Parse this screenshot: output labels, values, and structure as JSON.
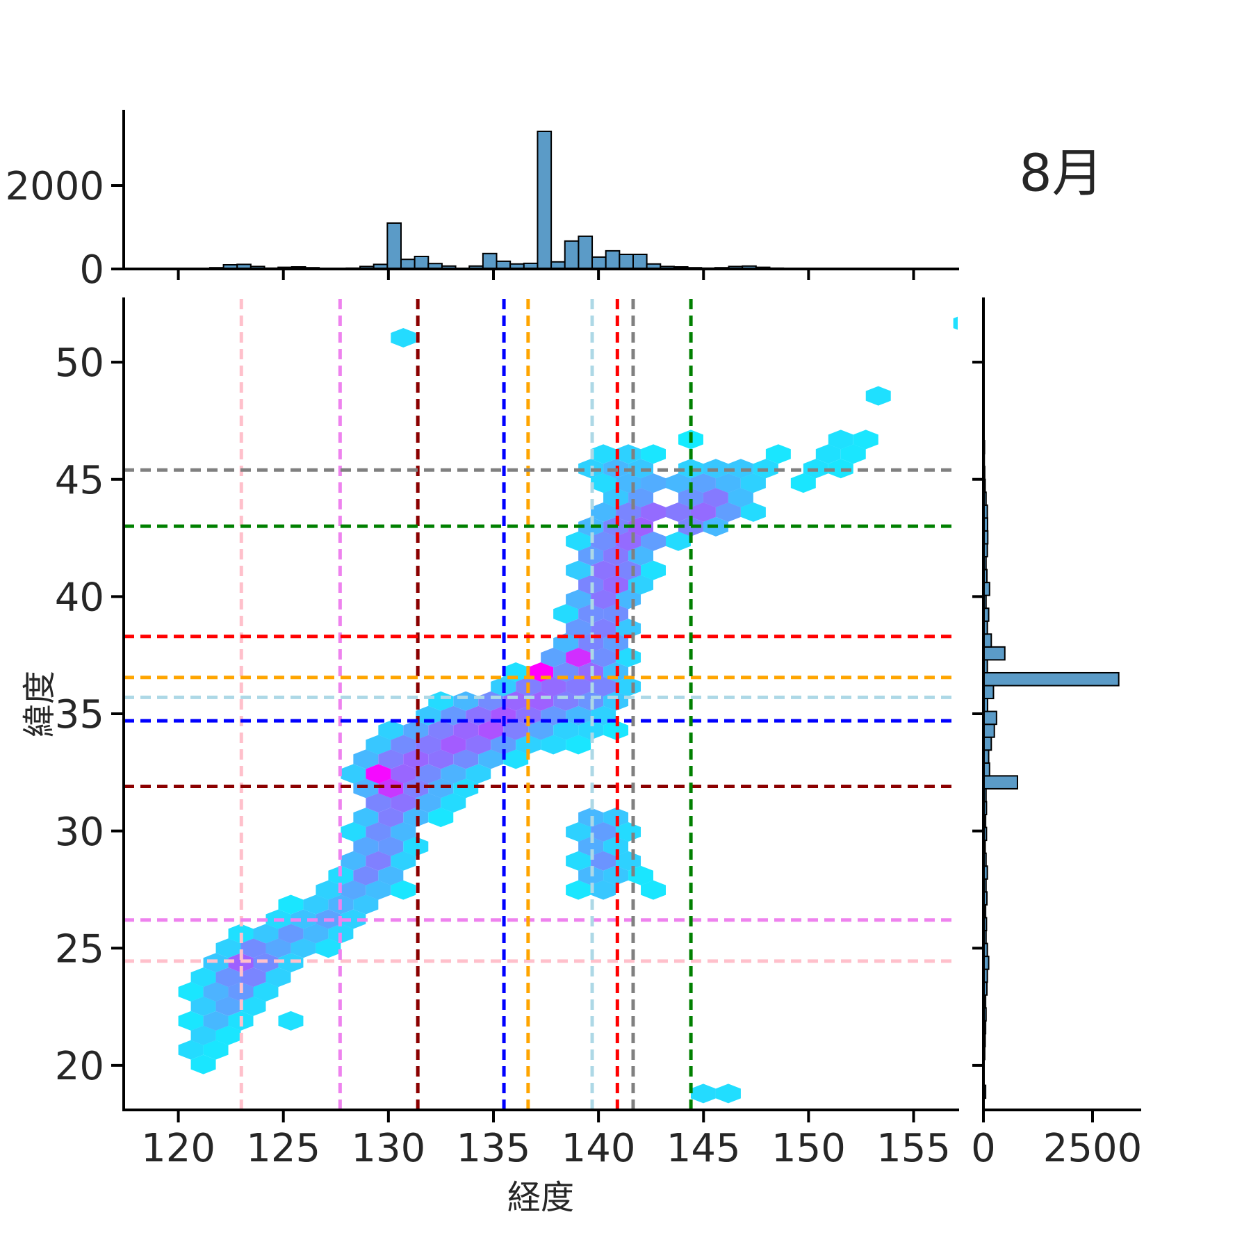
{
  "title": "8月",
  "axes": {
    "xlabel": "経度",
    "ylabel": "緯度"
  },
  "chart_data": {
    "type": "hexbin",
    "title": "8月",
    "main": {
      "xlabel": "経度",
      "ylabel": "緯度",
      "xlim": [
        117.4,
        157.1
      ],
      "ylim": [
        18.1,
        52.7
      ],
      "xticks": [
        120,
        125,
        130,
        135,
        140,
        145,
        150,
        155
      ],
      "yticks": [
        20,
        25,
        30,
        35,
        40,
        45,
        50
      ],
      "colormap": "cool",
      "hex_grid": {
        "lon0": 120.0,
        "lat0": 18.8,
        "dlon": 1.19,
        "dlat": 0.62
      },
      "hexes": [
        [
          121.4,
          20.04,
          0.1
        ],
        [
          120.8,
          20.66,
          0.14
        ],
        [
          122.0,
          20.66,
          0.1
        ],
        [
          121.4,
          21.28,
          0.18
        ],
        [
          122.6,
          21.28,
          0.1
        ],
        [
          120.8,
          21.9,
          0.1
        ],
        [
          122.0,
          21.9,
          0.28
        ],
        [
          123.2,
          21.9,
          0.12
        ],
        [
          125.5,
          21.9,
          0.12
        ],
        [
          121.4,
          22.52,
          0.2
        ],
        [
          122.6,
          22.52,
          0.34
        ],
        [
          123.8,
          22.52,
          0.14
        ],
        [
          120.8,
          23.14,
          0.1
        ],
        [
          122.0,
          23.14,
          0.3
        ],
        [
          123.2,
          23.14,
          0.4
        ],
        [
          124.3,
          23.14,
          0.15
        ],
        [
          121.4,
          23.76,
          0.14
        ],
        [
          122.6,
          23.76,
          0.42
        ],
        [
          123.8,
          23.76,
          0.48
        ],
        [
          124.9,
          23.76,
          0.18
        ],
        [
          122.0,
          24.38,
          0.22
        ],
        [
          123.2,
          24.38,
          0.62
        ],
        [
          124.3,
          24.38,
          0.45
        ],
        [
          125.5,
          24.38,
          0.18
        ],
        [
          122.6,
          25.0,
          0.18
        ],
        [
          123.8,
          25.0,
          0.45
        ],
        [
          124.9,
          25.0,
          0.34
        ],
        [
          126.1,
          25.0,
          0.22
        ],
        [
          127.3,
          25.0,
          0.12
        ],
        [
          123.2,
          25.62,
          0.12
        ],
        [
          124.3,
          25.62,
          0.22
        ],
        [
          125.5,
          25.62,
          0.4
        ],
        [
          126.7,
          25.62,
          0.28
        ],
        [
          127.8,
          25.62,
          0.16
        ],
        [
          124.9,
          26.24,
          0.14
        ],
        [
          126.1,
          26.24,
          0.24
        ],
        [
          127.3,
          26.24,
          0.36
        ],
        [
          128.4,
          26.24,
          0.18
        ],
        [
          125.5,
          26.86,
          0.1
        ],
        [
          126.7,
          26.86,
          0.2
        ],
        [
          127.8,
          26.86,
          0.3
        ],
        [
          129.0,
          26.86,
          0.22
        ],
        [
          127.3,
          27.48,
          0.18
        ],
        [
          128.4,
          27.48,
          0.34
        ],
        [
          129.6,
          27.48,
          0.26
        ],
        [
          130.8,
          27.48,
          0.1
        ],
        [
          127.8,
          28.1,
          0.14
        ],
        [
          129.0,
          28.1,
          0.46
        ],
        [
          130.2,
          28.1,
          0.28
        ],
        [
          128.4,
          28.72,
          0.28
        ],
        [
          129.6,
          28.72,
          0.5
        ],
        [
          130.8,
          28.72,
          0.18
        ],
        [
          129.0,
          29.34,
          0.34
        ],
        [
          130.2,
          29.34,
          0.4
        ],
        [
          131.3,
          29.34,
          0.14
        ],
        [
          128.4,
          29.96,
          0.14
        ],
        [
          129.6,
          29.96,
          0.44
        ],
        [
          130.8,
          29.96,
          0.28
        ],
        [
          129.0,
          30.58,
          0.24
        ],
        [
          130.2,
          30.58,
          0.5
        ],
        [
          131.3,
          30.58,
          0.28
        ],
        [
          132.5,
          30.58,
          0.1
        ],
        [
          129.6,
          31.2,
          0.48
        ],
        [
          130.8,
          31.2,
          0.55
        ],
        [
          131.9,
          31.2,
          0.3
        ],
        [
          133.1,
          31.2,
          0.14
        ],
        [
          129.0,
          31.82,
          0.3
        ],
        [
          130.2,
          31.82,
          0.78
        ],
        [
          131.3,
          31.82,
          0.5
        ],
        [
          132.5,
          31.82,
          0.3
        ],
        [
          133.7,
          31.82,
          0.14
        ],
        [
          128.4,
          32.44,
          0.2
        ],
        [
          129.6,
          32.44,
          0.96
        ],
        [
          130.8,
          32.44,
          0.6
        ],
        [
          131.9,
          32.44,
          0.45
        ],
        [
          133.1,
          32.44,
          0.3
        ],
        [
          134.3,
          32.44,
          0.18
        ],
        [
          129.0,
          33.06,
          0.28
        ],
        [
          130.2,
          33.06,
          0.5
        ],
        [
          131.3,
          33.06,
          0.6
        ],
        [
          132.5,
          33.06,
          0.55
        ],
        [
          133.7,
          33.06,
          0.45
        ],
        [
          134.9,
          33.06,
          0.28
        ],
        [
          136.1,
          33.06,
          0.12
        ],
        [
          129.6,
          33.68,
          0.22
        ],
        [
          130.8,
          33.68,
          0.45
        ],
        [
          131.9,
          33.68,
          0.52
        ],
        [
          133.1,
          33.68,
          0.64
        ],
        [
          134.3,
          33.68,
          0.55
        ],
        [
          135.5,
          33.68,
          0.38
        ],
        [
          136.7,
          33.68,
          0.18
        ],
        [
          137.8,
          33.68,
          0.15
        ],
        [
          139.0,
          33.68,
          0.1
        ],
        [
          130.2,
          34.3,
          0.18
        ],
        [
          131.3,
          34.3,
          0.34
        ],
        [
          132.5,
          34.3,
          0.5
        ],
        [
          133.7,
          34.3,
          0.6
        ],
        [
          134.9,
          34.3,
          0.68
        ],
        [
          136.1,
          34.3,
          0.5
        ],
        [
          137.3,
          34.3,
          0.34
        ],
        [
          138.4,
          34.3,
          0.18
        ],
        [
          139.6,
          34.3,
          0.16
        ],
        [
          140.8,
          34.3,
          0.1
        ],
        [
          131.9,
          34.92,
          0.22
        ],
        [
          133.1,
          34.92,
          0.4
        ],
        [
          134.3,
          34.92,
          0.55
        ],
        [
          135.5,
          34.92,
          0.66
        ],
        [
          136.7,
          34.92,
          0.55
        ],
        [
          137.8,
          34.92,
          0.4
        ],
        [
          139.0,
          34.92,
          0.28
        ],
        [
          140.2,
          34.92,
          0.18
        ],
        [
          132.5,
          35.54,
          0.14
        ],
        [
          133.7,
          35.54,
          0.28
        ],
        [
          134.9,
          35.54,
          0.45
        ],
        [
          136.1,
          35.54,
          0.6
        ],
        [
          137.3,
          35.54,
          0.62
        ],
        [
          138.4,
          35.54,
          0.5
        ],
        [
          139.6,
          35.54,
          0.42
        ],
        [
          140.8,
          35.54,
          0.22
        ],
        [
          135.5,
          36.16,
          0.2
        ],
        [
          136.7,
          36.16,
          0.5
        ],
        [
          137.8,
          36.16,
          0.58
        ],
        [
          139.0,
          36.16,
          0.52
        ],
        [
          140.2,
          36.16,
          0.48
        ],
        [
          141.4,
          36.16,
          0.18
        ],
        [
          135.5,
          36.78,
          0.12
        ],
        [
          136.7,
          36.78,
          1.0
        ],
        [
          137.8,
          36.78,
          0.48
        ],
        [
          139.0,
          36.78,
          0.44
        ],
        [
          140.2,
          36.78,
          0.58
        ],
        [
          141.4,
          36.78,
          0.26
        ],
        [
          137.3,
          37.4,
          0.2
        ],
        [
          138.4,
          37.4,
          0.36
        ],
        [
          139.6,
          37.4,
          0.82
        ],
        [
          140.8,
          37.4,
          0.44
        ],
        [
          141.9,
          37.4,
          0.14
        ],
        [
          139.0,
          38.02,
          0.28
        ],
        [
          140.2,
          38.02,
          0.48
        ],
        [
          141.4,
          38.02,
          0.38
        ],
        [
          139.6,
          38.64,
          0.4
        ],
        [
          140.8,
          38.64,
          0.5
        ],
        [
          141.9,
          38.64,
          0.22
        ],
        [
          139.0,
          39.26,
          0.14
        ],
        [
          140.2,
          39.26,
          0.44
        ],
        [
          141.4,
          39.26,
          0.44
        ],
        [
          139.6,
          39.88,
          0.3
        ],
        [
          140.8,
          39.88,
          0.54
        ],
        [
          141.9,
          39.88,
          0.28
        ],
        [
          140.2,
          40.5,
          0.48
        ],
        [
          141.4,
          40.5,
          0.58
        ],
        [
          142.6,
          40.5,
          0.18
        ],
        [
          139.6,
          41.12,
          0.2
        ],
        [
          140.8,
          41.12,
          0.55
        ],
        [
          141.9,
          41.12,
          0.48
        ],
        [
          143.1,
          41.12,
          0.12
        ],
        [
          140.2,
          41.74,
          0.38
        ],
        [
          141.4,
          41.74,
          0.52
        ],
        [
          142.6,
          41.74,
          0.28
        ],
        [
          139.6,
          42.36,
          0.14
        ],
        [
          140.8,
          42.36,
          0.44
        ],
        [
          141.9,
          42.36,
          0.58
        ],
        [
          143.1,
          42.36,
          0.38
        ],
        [
          144.3,
          42.36,
          0.14
        ],
        [
          140.2,
          42.98,
          0.28
        ],
        [
          141.4,
          42.98,
          0.48
        ],
        [
          142.6,
          42.98,
          0.62
        ],
        [
          143.8,
          42.98,
          0.48
        ],
        [
          145.0,
          42.98,
          0.28
        ],
        [
          146.1,
          42.98,
          0.18
        ],
        [
          140.8,
          43.6,
          0.28
        ],
        [
          141.9,
          43.6,
          0.48
        ],
        [
          143.1,
          43.6,
          0.58
        ],
        [
          144.3,
          43.6,
          0.52
        ],
        [
          145.5,
          43.6,
          0.58
        ],
        [
          146.7,
          43.6,
          0.38
        ],
        [
          147.9,
          43.6,
          0.14
        ],
        [
          141.4,
          44.22,
          0.22
        ],
        [
          142.6,
          44.22,
          0.38
        ],
        [
          143.8,
          44.22,
          0.42
        ],
        [
          145.0,
          44.22,
          0.48
        ],
        [
          146.1,
          44.22,
          0.52
        ],
        [
          147.3,
          44.22,
          0.26
        ],
        [
          140.8,
          44.84,
          0.14
        ],
        [
          141.9,
          44.84,
          0.28
        ],
        [
          143.1,
          44.84,
          0.32
        ],
        [
          144.3,
          44.84,
          0.28
        ],
        [
          145.5,
          44.84,
          0.36
        ],
        [
          146.7,
          44.84,
          0.28
        ],
        [
          147.9,
          44.84,
          0.18
        ],
        [
          150.3,
          44.84,
          0.1
        ],
        [
          140.2,
          45.46,
          0.18
        ],
        [
          141.4,
          45.46,
          0.28
        ],
        [
          142.6,
          45.46,
          0.22
        ],
        [
          143.8,
          45.46,
          0.18
        ],
        [
          145.0,
          45.46,
          0.22
        ],
        [
          146.1,
          45.46,
          0.18
        ],
        [
          147.3,
          45.46,
          0.22
        ],
        [
          148.5,
          45.46,
          0.15
        ],
        [
          150.9,
          45.46,
          0.12
        ],
        [
          152.0,
          45.46,
          0.1
        ],
        [
          140.8,
          46.08,
          0.14
        ],
        [
          141.9,
          46.08,
          0.18
        ],
        [
          143.1,
          46.08,
          0.1
        ],
        [
          148.6,
          46.08,
          0.1
        ],
        [
          151.4,
          46.08,
          0.12
        ],
        [
          152.6,
          46.08,
          0.1
        ],
        [
          144.3,
          46.7,
          0.08
        ],
        [
          152.1,
          46.7,
          0.12
        ],
        [
          153.2,
          46.7,
          0.1
        ],
        [
          152.8,
          48.56,
          0.12
        ],
        [
          130.8,
          51.04,
          0.14
        ],
        [
          157.3,
          51.9,
          0.12
        ],
        [
          139.6,
          30.58,
          0.28
        ],
        [
          140.8,
          30.58,
          0.22
        ],
        [
          139.0,
          29.96,
          0.18
        ],
        [
          140.2,
          29.96,
          0.38
        ],
        [
          141.4,
          29.96,
          0.14
        ],
        [
          139.6,
          29.34,
          0.32
        ],
        [
          140.8,
          29.34,
          0.18
        ],
        [
          139.0,
          28.72,
          0.14
        ],
        [
          140.2,
          28.72,
          0.42
        ],
        [
          141.4,
          28.72,
          0.18
        ],
        [
          139.6,
          28.1,
          0.28
        ],
        [
          140.8,
          28.1,
          0.22
        ],
        [
          142.0,
          28.1,
          0.1
        ],
        [
          139.0,
          27.48,
          0.1
        ],
        [
          140.2,
          27.48,
          0.22
        ],
        [
          142.5,
          27.48,
          0.1
        ],
        [
          145.0,
          18.8,
          0.14
        ],
        [
          146.2,
          18.8,
          0.13
        ]
      ]
    },
    "ref_lines": [
      {
        "id": "pink",
        "color": "#FFC0CB",
        "lon": 123.0,
        "lat": 24.45
      },
      {
        "id": "violet",
        "color": "#EE82EE",
        "lon": 127.7,
        "lat": 26.2
      },
      {
        "id": "darkred",
        "color": "#8B0000",
        "lon": 131.4,
        "lat": 31.9
      },
      {
        "id": "blue",
        "color": "#0000FF",
        "lon": 135.5,
        "lat": 34.7
      },
      {
        "id": "orange",
        "color": "#FFA500",
        "lon": 136.65,
        "lat": 36.55
      },
      {
        "id": "lightblue",
        "color": "#ADD8E6",
        "lon": 139.7,
        "lat": 35.7
      },
      {
        "id": "red",
        "color": "#FF0000",
        "lon": 140.9,
        "lat": 38.3
      },
      {
        "id": "gray",
        "color": "#808080",
        "lon": 141.65,
        "lat": 45.4
      },
      {
        "id": "green",
        "color": "#008000",
        "lon": 144.4,
        "lat": 43.0
      }
    ],
    "top_hist": {
      "bin_start": 121.5,
      "bin_width": 0.65,
      "counts": [
        30,
        100,
        110,
        60,
        20,
        40,
        50,
        30,
        10,
        10,
        20,
        60,
        110,
        1100,
        230,
        300,
        130,
        70,
        10,
        70,
        370,
        185,
        120,
        135,
        3300,
        170,
        670,
        785,
        285,
        435,
        350,
        350,
        120,
        60,
        50,
        30,
        20,
        30,
        60,
        70,
        40,
        20,
        10,
        0,
        10
      ],
      "yticks": [
        0,
        2000
      ],
      "ymax": 3500
    },
    "right_hist": {
      "bin_start": 18.6,
      "bin_width": 0.55,
      "counts": [
        50,
        0,
        0,
        30,
        40,
        50,
        60,
        50,
        80,
        90,
        120,
        90,
        60,
        70,
        50,
        80,
        60,
        90,
        60,
        40,
        70,
        50,
        70,
        60,
        780,
        140,
        120,
        180,
        250,
        300,
        95,
        230,
        3100,
        90,
        490,
        180,
        90,
        120,
        60,
        140,
        80,
        60,
        90,
        100,
        95,
        90,
        60,
        40,
        30,
        20,
        25,
        10,
        0,
        0,
        15,
        0,
        0,
        0,
        0,
        10
      ],
      "xticks": [
        0,
        2500
      ],
      "xmax": 3500
    },
    "bar_color": "#5B9BC7",
    "bar_edge": "#000000"
  }
}
